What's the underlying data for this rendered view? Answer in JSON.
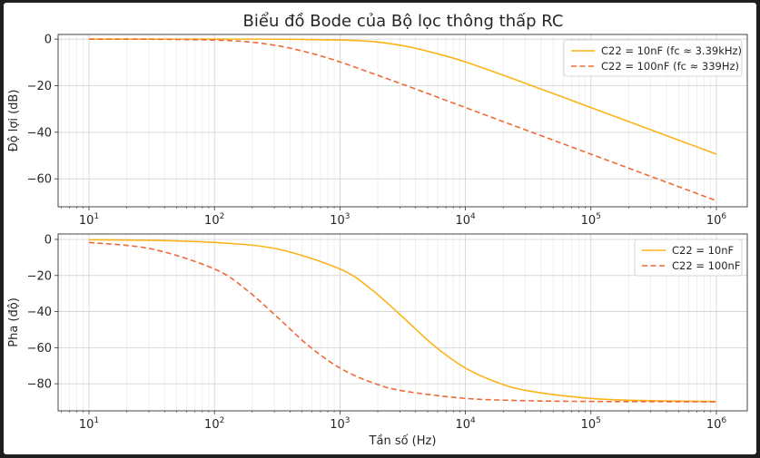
{
  "chart_data": [
    {
      "type": "line",
      "title": "Biểu đồ Bode của Bộ lọc thông thấp RC",
      "xlabel": "",
      "ylabel": "Độ lợi (dB)",
      "xscale": "log",
      "xlim": [
        10,
        1000000
      ],
      "ylim": [
        -72,
        2
      ],
      "xticks": [
        10,
        100,
        1000,
        10000,
        100000,
        1000000
      ],
      "yticks": [
        0,
        -20,
        -40,
        -60
      ],
      "ytick_labels": [
        "0",
        "−20",
        "−40",
        "−60"
      ],
      "grid": true,
      "legend_position": "top-right",
      "series": [
        {
          "name": "C22 = 10nF (fc ≈ 3.39kHz)",
          "color": "#FBB31A",
          "dash": "solid",
          "x": [
            10,
            31.6,
            100,
            316,
            1000,
            1780,
            3160,
            5620,
            10000,
            31600,
            100000,
            316000,
            1000000
          ],
          "y": [
            0.0,
            0.0,
            0.0,
            -0.04,
            -0.4,
            -1.0,
            -2.8,
            -5.9,
            -9.8,
            -19.4,
            -29.4,
            -39.4,
            -49.4
          ]
        },
        {
          "name": "C22 = 100nF (fc ≈ 339Hz)",
          "color": "#EE6A37",
          "dash": "dashed",
          "x": [
            10,
            31.6,
            100,
            178,
            316,
            562,
            1000,
            3160,
            10000,
            31600,
            100000,
            316000,
            1000000
          ],
          "y": [
            0.0,
            -0.04,
            -0.4,
            -1.1,
            -2.8,
            -5.8,
            -9.8,
            -19.4,
            -29.4,
            -39.4,
            -49.4,
            -59.4,
            -69.4
          ]
        }
      ]
    },
    {
      "type": "line",
      "title": "",
      "xlabel": "Tần số (Hz)",
      "ylabel": "Pha (độ)",
      "xscale": "log",
      "xlim": [
        10,
        1000000
      ],
      "ylim": [
        -95,
        3
      ],
      "xticks": [
        10,
        100,
        1000,
        10000,
        100000,
        1000000
      ],
      "yticks": [
        0,
        -20,
        -40,
        -60,
        -80
      ],
      "ytick_labels": [
        "0",
        "−20",
        "−40",
        "−60",
        "−80"
      ],
      "grid": true,
      "legend_position": "top-right",
      "series": [
        {
          "name": "C22 = 10nF",
          "color": "#FBB31A",
          "dash": "solid",
          "x": [
            10,
            31.6,
            100,
            316,
            1000,
            1780,
            3160,
            5620,
            10000,
            17800,
            31600,
            100000,
            316000,
            1000000
          ],
          "y": [
            -0.2,
            -0.5,
            -1.7,
            -5.3,
            -16.4,
            -27.7,
            -43.0,
            -58.9,
            -71.3,
            -79.2,
            -83.9,
            -88.1,
            -89.4,
            -89.8
          ]
        },
        {
          "name": "C22 = 100nF",
          "color": "#EE6A37",
          "dash": "dashed",
          "x": [
            10,
            31.6,
            100,
            178,
            316,
            562,
            1000,
            1780,
            3160,
            10000,
            31600,
            100000,
            316000,
            1000000
          ],
          "y": [
            -1.7,
            -5.3,
            -16.4,
            -27.7,
            -43.0,
            -58.9,
            -71.3,
            -79.2,
            -83.9,
            -88.1,
            -89.4,
            -89.8,
            -89.9,
            -90.0
          ]
        }
      ]
    }
  ],
  "x_tick_base": "10",
  "x_tick_exponents": [
    "1",
    "2",
    "3",
    "4",
    "5",
    "6"
  ]
}
